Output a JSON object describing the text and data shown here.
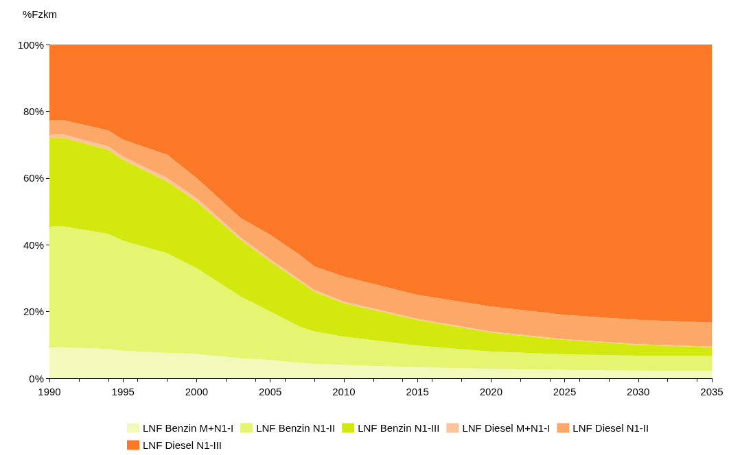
{
  "chart_data": {
    "type": "area",
    "stacked": true,
    "ylabel": "%Fzkm",
    "x": [
      1990,
      1991,
      1994,
      1995,
      1998,
      2000,
      2003,
      2005,
      2007,
      2008,
      2010,
      2015,
      2020,
      2025,
      2030,
      2035
    ],
    "series": [
      {
        "name": "LNF Benzin M+N1-I",
        "color": "#f2f9bb",
        "values": [
          9.3,
          9.3,
          8.8,
          8.2,
          7.6,
          7.3,
          6,
          5.5,
          4.6,
          4.3,
          4,
          3.3,
          2.8,
          2.5,
          2.3,
          2.2
        ]
      },
      {
        "name": "LNF Benzin N1-II",
        "color": "#e5f471",
        "values": [
          36.2,
          36.2,
          34.5,
          33,
          29.9,
          25.7,
          18.5,
          14.5,
          10.9,
          9.7,
          8.5,
          6.5,
          5.2,
          4.7,
          4.5,
          4.6
        ]
      },
      {
        "name": "LNF Benzin N1-III",
        "color": "#d2e80f",
        "values": [
          26.5,
          26.5,
          25.2,
          24.3,
          21.5,
          20,
          17,
          15,
          13.5,
          12,
          10,
          7.7,
          5.7,
          4.3,
          3.2,
          2.5
        ]
      },
      {
        "name": "LNF Diesel M+N1-I",
        "color": "#fbc49a",
        "values": [
          1,
          1,
          1,
          1,
          1,
          1,
          0.7,
          0.7,
          0.5,
          0.5,
          0.5,
          0.3,
          0.3,
          0.2,
          0.2,
          0.2
        ]
      },
      {
        "name": "LNF Diesel N1-II",
        "color": "#fba868",
        "values": [
          4.3,
          4.3,
          4.8,
          5,
          7,
          6,
          5.8,
          7.3,
          7.5,
          7,
          7.5,
          7.2,
          7.5,
          7.3,
          7.3,
          7.2
        ]
      },
      {
        "name": "LNF Diesel N1-III",
        "color": "#fb7827",
        "values": [
          22.7,
          22.7,
          25.7,
          28.5,
          33,
          40,
          52,
          57,
          63,
          66.5,
          69.5,
          75,
          78.5,
          81,
          82.5,
          83.3
        ]
      }
    ],
    "xlim": [
      1990,
      2035
    ],
    "xticks": [
      1990,
      1995,
      2000,
      2005,
      2010,
      2015,
      2020,
      2025,
      2030,
      2035
    ],
    "ylim": [
      0,
      100
    ],
    "yticks": [
      {
        "value": 0,
        "label": "0%"
      },
      {
        "value": 20,
        "label": "20%"
      },
      {
        "value": 40,
        "label": "40%"
      },
      {
        "value": 60,
        "label": "60%"
      },
      {
        "value": 80,
        "label": "80%"
      },
      {
        "value": 100,
        "label": "100%"
      }
    ],
    "grid": false,
    "legend": "bottom"
  }
}
